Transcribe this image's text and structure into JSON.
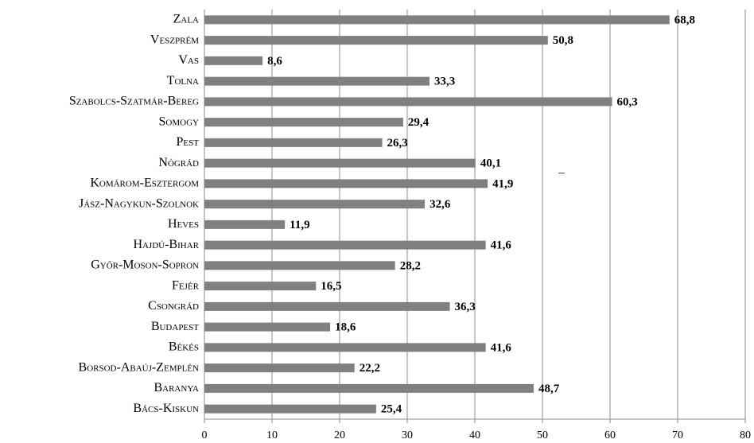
{
  "chart_data": {
    "type": "barh",
    "categories": [
      "Zala",
      "Veszprém",
      "Vas",
      "Tolna",
      "Szabolcs-Szatmár-Bereg",
      "Somogy",
      "Pest",
      "Nógrád",
      "Komárom-Esztergom",
      "Jász-Nagykun-Szolnok",
      "Heves",
      "Hajdú-Bihar",
      "Győr-Moson-Sopron",
      "Fejér",
      "Csongrád",
      "Budapest",
      "Békés",
      "Borsod-Abaúj-Zemplén",
      "Baranya",
      "Bács-Kiskun"
    ],
    "values": [
      68.8,
      50.8,
      8.6,
      33.3,
      60.3,
      29.4,
      26.3,
      40.1,
      41.9,
      32.6,
      11.9,
      41.6,
      28.2,
      16.5,
      36.3,
      18.6,
      41.6,
      22.2,
      48.7,
      25.4
    ],
    "value_labels": [
      "68,8",
      "50,8",
      "8,6",
      "33,3",
      "60,3",
      "29,4",
      "26,3",
      "40,1",
      "41,9",
      "32,6",
      "11,9",
      "41,6",
      "28,2",
      "16,5",
      "36,3",
      "18,6",
      "41,6",
      "22,2",
      "48,7",
      "25,4"
    ],
    "color": "#808080",
    "xlim": [
      0,
      80
    ],
    "xticks": [
      0,
      10,
      20,
      30,
      40,
      50,
      60,
      70,
      80
    ],
    "grid": true,
    "annotation": "–"
  }
}
